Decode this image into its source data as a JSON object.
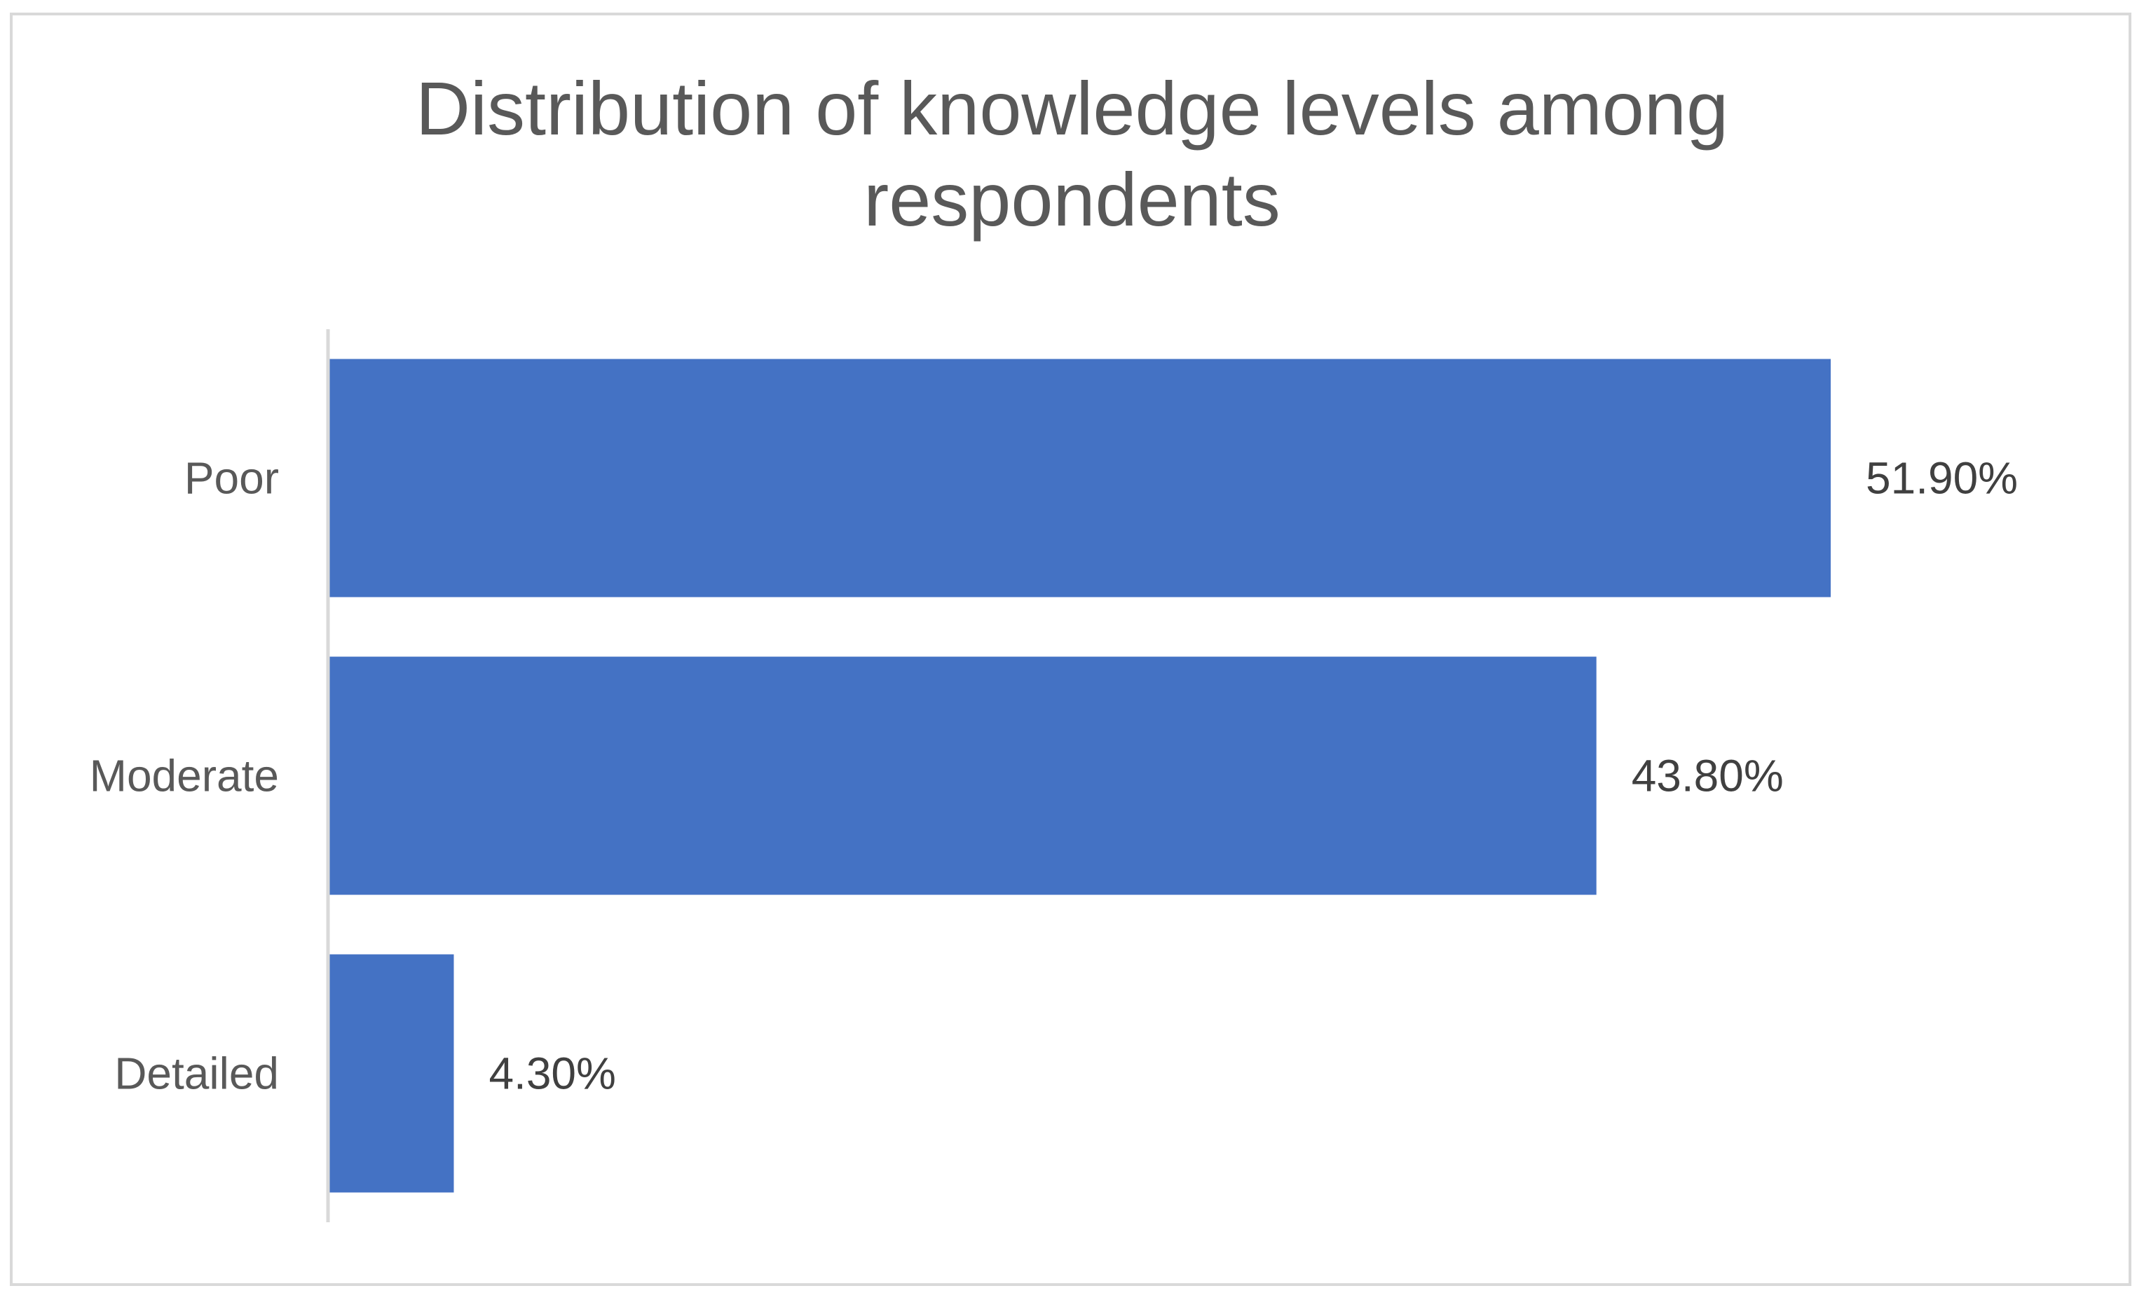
{
  "chart_data": {
    "type": "bar",
    "orientation": "horizontal",
    "title": "Distribution of knowledge levels among respondents",
    "categories": [
      "Poor",
      "Moderate",
      "Detailed"
    ],
    "values": [
      51.9,
      43.8,
      4.3
    ],
    "data_labels": [
      "51.90%",
      "43.80%",
      "4.30%"
    ],
    "xlabel": "",
    "ylabel": "",
    "xlim": [
      0,
      60
    ],
    "grid": false,
    "legend": "none",
    "bar_color": "#4472c4",
    "axis_color": "#d9d9d9",
    "text_color": "#595959"
  }
}
